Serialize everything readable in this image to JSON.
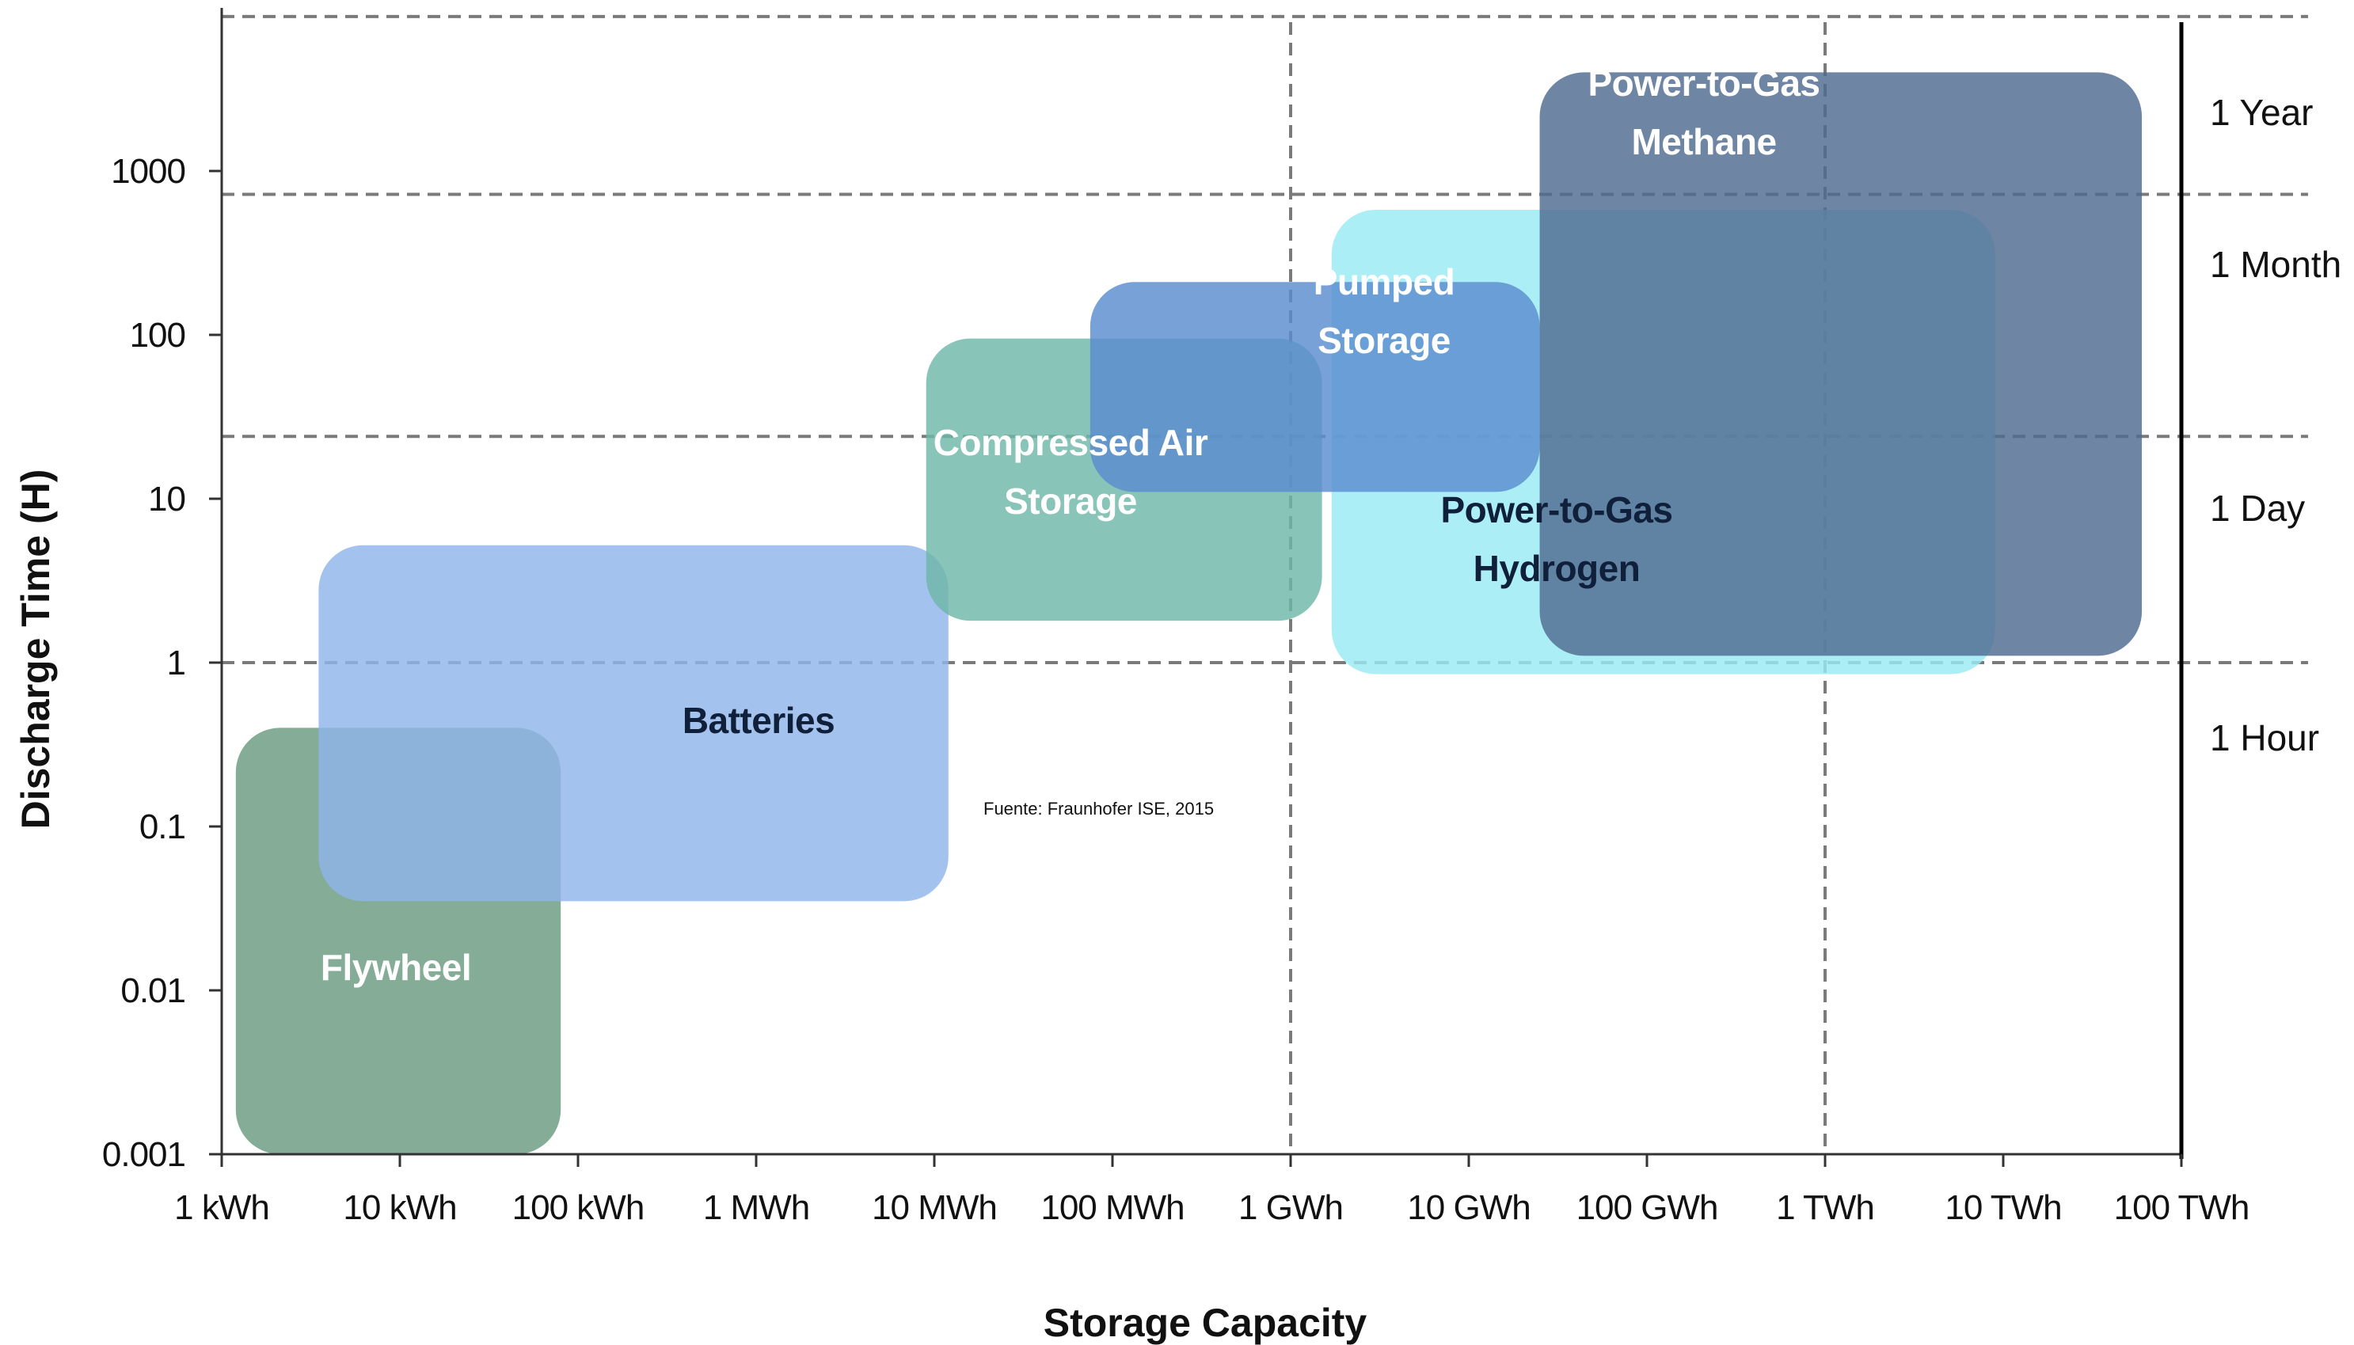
{
  "chart_data": {
    "type": "area",
    "title": "",
    "xlabel": "Storage Capacity",
    "ylabel": "Discharge Time (H)",
    "x_scale": "log",
    "y_scale": "log",
    "x_ticks": [
      "1 kWh",
      "10 kWh",
      "100 kWh",
      "1 MWh",
      "10 MWh",
      "100 MWh",
      "1 GWh",
      "10 GWh",
      "100 GWh",
      "1 TWh",
      "10 TWh",
      "100 TWh"
    ],
    "y_ticks": [
      "0.001",
      "0.01",
      "0.1",
      "1",
      "10",
      "100",
      "1000"
    ],
    "xlim_kwh": [
      1,
      100000000000
    ],
    "ylim_hours": [
      0.001,
      8000
    ],
    "time_references": [
      {
        "label": "1 Year",
        "hours": 8760
      },
      {
        "label": "1 Month",
        "hours": 720
      },
      {
        "label": "1 Day",
        "hours": 24
      },
      {
        "label": "1 Hour",
        "hours": 1
      }
    ],
    "capacity_references_kwh": [
      1000000,
      1000000000
    ],
    "series": [
      {
        "name": "Flywheel",
        "capacity_kwh": [
          1.2,
          80
        ],
        "discharge_hours": [
          0.001,
          0.4
        ],
        "color": "#6a9a80"
      },
      {
        "name": "Batteries",
        "capacity_kwh": [
          3.5,
          12000
        ],
        "discharge_hours": [
          0.035,
          5.2
        ],
        "color": "#8fb4e9"
      },
      {
        "name": "Compressed Air Storage",
        "capacity_kwh": [
          9000,
          1500000
        ],
        "discharge_hours": [
          1.8,
          95
        ],
        "color": "#6fb7a8"
      },
      {
        "name": "Power-to-Gas Hydrogen",
        "capacity_kwh": [
          1700000,
          9000000000
        ],
        "discharge_hours": [
          0.85,
          580
        ],
        "color": "#9aeaf4"
      },
      {
        "name": "Pumped Storage",
        "capacity_kwh": [
          75000,
          25000000
        ],
        "discharge_hours": [
          11,
          210
        ],
        "color": "#5a8cd0"
      },
      {
        "name": "Power-to-Gas Methane",
        "capacity_kwh": [
          25000000,
          60000000000
        ],
        "discharge_hours": [
          1.1,
          4000
        ],
        "color": "#4f6a90"
      }
    ],
    "legend": "none",
    "grid": "dashed reference lines"
  },
  "source_note": "Fuente: Fraunhofer ISE, 2015",
  "region_labels": {
    "flywheel": [
      "Flywheel"
    ],
    "batteries": [
      "Batteries"
    ],
    "compressed_air": [
      "Compressed Air",
      "Storage"
    ],
    "pumped": [
      "Pumped",
      "Storage"
    ],
    "p2g_hydrogen": [
      "Power-to-Gas",
      "Hydrogen"
    ],
    "p2g_methane": [
      "Power-to-Gas",
      "Methane"
    ]
  }
}
